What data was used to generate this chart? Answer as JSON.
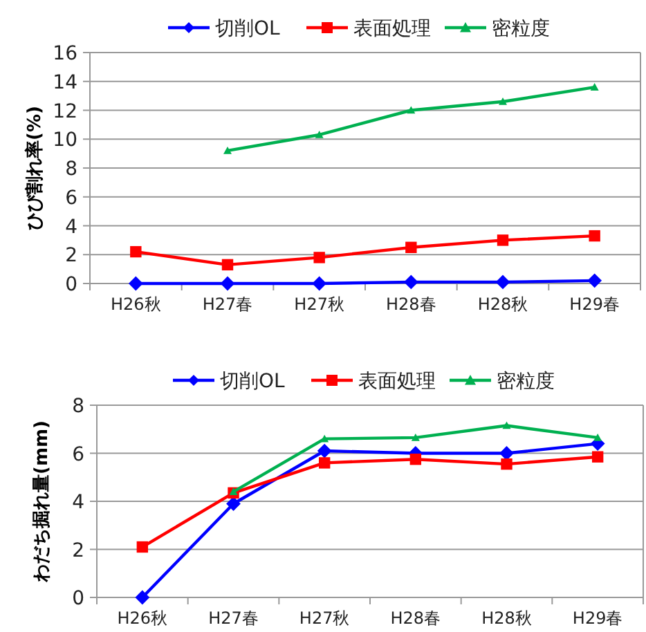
{
  "chart_data": [
    {
      "type": "line",
      "ylabel": "ひび割れ率(%)",
      "categories": [
        "H26秋",
        "H27春",
        "H27秋",
        "H28春",
        "H28秋",
        "H29春"
      ],
      "ylim": [
        0,
        16
      ],
      "yticks": [
        0,
        2,
        4,
        6,
        8,
        10,
        12,
        14,
        16
      ],
      "grid": "y",
      "legend": "top",
      "series": [
        {
          "name": "切削OL",
          "color": "#0000ff",
          "marker": "diamond",
          "values": [
            0,
            0,
            0,
            0.1,
            0.1,
            0.2
          ]
        },
        {
          "name": "表面処理",
          "color": "#ff0000",
          "marker": "square",
          "values": [
            2.2,
            1.3,
            1.8,
            2.5,
            3.0,
            3.3
          ]
        },
        {
          "name": "密粒度",
          "color": "#00b050",
          "marker": "triangle",
          "values": [
            null,
            9.2,
            10.3,
            12.0,
            12.6,
            13.6
          ]
        }
      ]
    },
    {
      "type": "line",
      "ylabel": "わだち掘れ量(mm)",
      "categories": [
        "H26秋",
        "H27春",
        "H27秋",
        "H28春",
        "H28秋",
        "H29春"
      ],
      "ylim": [
        0,
        8
      ],
      "yticks": [
        0,
        2,
        4,
        6,
        8
      ],
      "grid": "y",
      "legend": "top",
      "series": [
        {
          "name": "切削OL",
          "color": "#0000ff",
          "marker": "diamond",
          "values": [
            0,
            3.9,
            6.1,
            6.0,
            6.0,
            6.4
          ]
        },
        {
          "name": "表面処理",
          "color": "#ff0000",
          "marker": "square",
          "values": [
            2.1,
            4.35,
            5.6,
            5.75,
            5.55,
            5.85
          ]
        },
        {
          "name": "密粒度",
          "color": "#00b050",
          "marker": "triangle",
          "values": [
            null,
            4.4,
            6.6,
            6.65,
            7.15,
            6.65
          ]
        }
      ]
    }
  ]
}
